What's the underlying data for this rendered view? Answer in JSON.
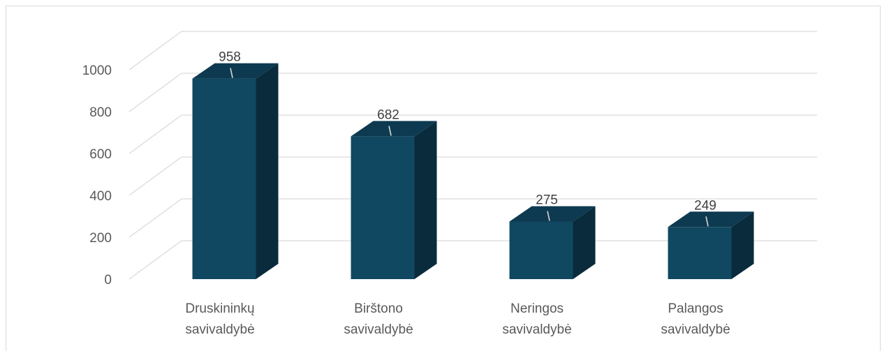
{
  "chart_data": {
    "type": "bar",
    "style": "3d-column",
    "categories": [
      [
        "Druskininkų",
        "savivaldybė"
      ],
      [
        "Birštono",
        "savivaldybė"
      ],
      [
        "Neringos",
        "savivaldybė"
      ],
      [
        "Palangos",
        "savivaldybė"
      ]
    ],
    "values": [
      958,
      682,
      275,
      249
    ],
    "data_labels": [
      "958",
      "682",
      "275",
      "249"
    ],
    "y_ticks": [
      "0",
      "200",
      "400",
      "600",
      "800",
      "1000"
    ],
    "ylim": [
      0,
      1000
    ],
    "grid": true,
    "legend": "none",
    "colors": {
      "front": "#114861",
      "top": "#0d3a50",
      "side": "#0a2b3c",
      "grid": "#d9d9d9",
      "text": "#595959"
    }
  }
}
